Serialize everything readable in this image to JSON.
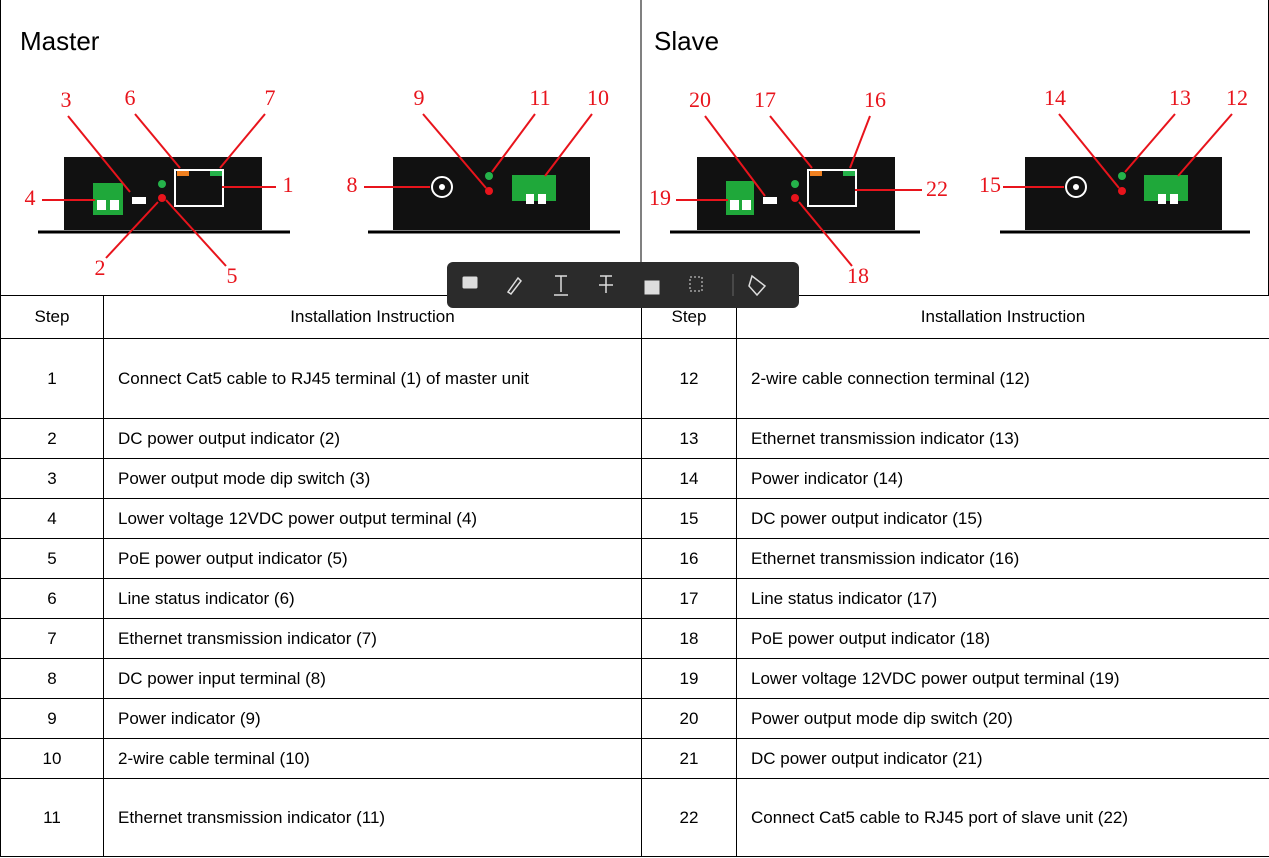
{
  "master": {
    "title": "Master",
    "callouts": {
      "n3": "3",
      "n6": "6",
      "n7": "7",
      "n4": "4",
      "n1": "1",
      "n2": "2",
      "n5": "5",
      "n9": "9",
      "n11": "11",
      "n10": "10",
      "n8": "8"
    }
  },
  "slave": {
    "title": "Slave",
    "callouts": {
      "n20": "20",
      "n17": "17",
      "n16": "16",
      "n19": "19",
      "n22": "22",
      "n18": "18",
      "n14": "14",
      "n13": "13",
      "n12": "12",
      "n15": "15"
    }
  },
  "table": {
    "header": [
      "Step",
      "Installation Instruction",
      "Step",
      "Installation Instruction"
    ],
    "rows": [
      [
        "1",
        "Connect Cat5 cable to RJ45 terminal (1) of master unit",
        "12",
        "2-wire cable connection terminal (12)"
      ],
      [
        "2",
        "DC power output indicator (2)",
        "13",
        "Ethernet transmission indicator (13)"
      ],
      [
        "3",
        "Power output mode dip switch (3)",
        "14",
        "Power indicator (14)"
      ],
      [
        "4",
        "Lower voltage 12VDC power output terminal (4)",
        "15",
        "DC power output indicator (15)"
      ],
      [
        "5",
        "PoE power output indicator (5)",
        "16",
        "Ethernet transmission indicator (16)"
      ],
      [
        "6",
        "Line status indicator (6)",
        "17",
        "Line status indicator (17)"
      ],
      [
        "7",
        "Ethernet transmission indicator (7)",
        "18",
        "PoE power output indicator (18)"
      ],
      [
        "8",
        "DC power input terminal (8)",
        "19",
        "Lower voltage 12VDC power output terminal (19)"
      ],
      [
        "9",
        "Power indicator (9)",
        "20",
        "Power output mode dip switch (20)"
      ],
      [
        "10",
        "2-wire cable terminal (10)",
        "21",
        "DC power output indicator (21)"
      ],
      [
        "11",
        "Ethernet transmission indicator (11)",
        "22",
        "Connect Cat5 cable to RJ45 port of slave unit (22)"
      ]
    ]
  }
}
